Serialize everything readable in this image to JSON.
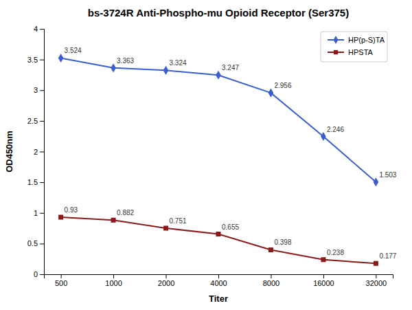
{
  "chart_data": {
    "type": "line",
    "title": "bs-3724R Anti-Phospho-mu Opioid Receptor (Ser375)",
    "xlabel": "Titer",
    "ylabel": "OD450nm",
    "x": [
      500,
      1000,
      2000,
      4000,
      8000,
      16000,
      32000
    ],
    "series": [
      {
        "name": "HP(p-S)TA",
        "color": "#3A5FCD",
        "marker": "diamond",
        "values": [
          3.524,
          3.363,
          3.324,
          3.247,
          2.956,
          2.246,
          1.503
        ]
      },
      {
        "name": "HPSTA",
        "color": "#8B1A1A",
        "marker": "square",
        "values": [
          0.93,
          0.882,
          0.751,
          0.655,
          0.398,
          0.238,
          0.177
        ]
      }
    ],
    "xlim": [
      400,
      40000
    ],
    "ylim": [
      0,
      4
    ],
    "xticks": [
      500,
      1000,
      2000,
      4000,
      8000,
      16000,
      32000
    ],
    "yticks": [
      0,
      0.5,
      1,
      1.5,
      2,
      2.5,
      3,
      3.5,
      4
    ],
    "log": "x",
    "legend": "upper right",
    "data_labels": true
  }
}
